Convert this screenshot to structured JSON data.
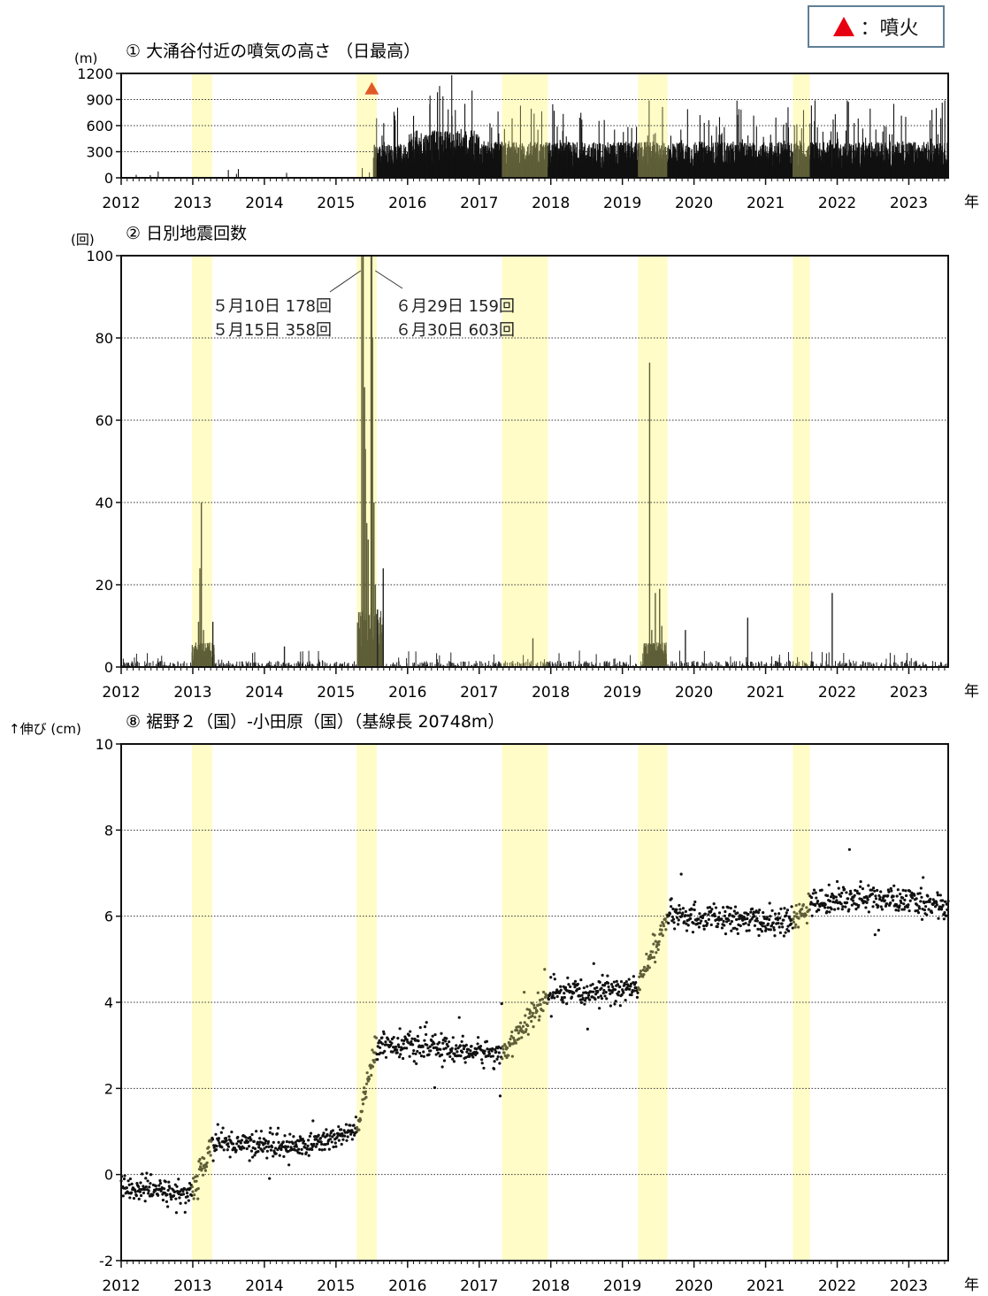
{
  "legend": {
    "marker_color": "#e60012",
    "label": "：噴火"
  },
  "year_suffix": "年",
  "highlight_color": "#fffcc8",
  "highlight_periods": [
    [
      2012.99,
      2013.27
    ],
    [
      2015.29,
      2015.57
    ],
    [
      2017.32,
      2017.96
    ],
    [
      2019.22,
      2019.63
    ],
    [
      2021.38,
      2021.62
    ]
  ],
  "chart_data": [
    {
      "type": "bar",
      "title": "① 大涌谷付近の噴気の高さ （日最高）",
      "unit": "(m)",
      "xlim": [
        2012,
        2023.55
      ],
      "ylim": [
        0,
        1200
      ],
      "x_ticks": [
        "2012",
        "2013",
        "2014",
        "2015",
        "2016",
        "2017",
        "2018",
        "2019",
        "2020",
        "2021",
        "2022",
        "2023"
      ],
      "y_ticks": [
        "0",
        "300",
        "600",
        "900",
        "1200"
      ],
      "grid": "horizontal-dotted",
      "eruption_marker": {
        "x": 2015.5,
        "y": 1020,
        "color": "#e05a28"
      },
      "series_summary": [
        {
          "period": [
            2012.0,
            2015.52
          ],
          "typical": 0,
          "max": 120
        },
        {
          "period": [
            2015.52,
            2016.0
          ],
          "typical": 300,
          "max": 850
        },
        {
          "period": [
            2016.0,
            2017.0
          ],
          "typical": 420,
          "max": 1180
        },
        {
          "period": [
            2017.0,
            2023.55
          ],
          "typical": 320,
          "max": 890
        }
      ]
    },
    {
      "type": "bar",
      "title": "② 日別地震回数",
      "unit": "(回)",
      "xlim": [
        2012,
        2023.55
      ],
      "ylim": [
        0,
        100
      ],
      "x_ticks": [
        "2012",
        "2013",
        "2014",
        "2015",
        "2016",
        "2017",
        "2018",
        "2019",
        "2020",
        "2021",
        "2022",
        "2023"
      ],
      "y_ticks": [
        "0",
        "20",
        "40",
        "60",
        "80",
        "100"
      ],
      "grid": "horizontal-dotted",
      "peaks": [
        {
          "x": 2013.12,
          "y": 40
        },
        {
          "x": 2013.1,
          "y": 24
        },
        {
          "x": 2013.08,
          "y": 11
        },
        {
          "x": 2013.15,
          "y": 9
        },
        {
          "x": 2013.28,
          "y": 11
        },
        {
          "x": 2015.36,
          "y": 100
        },
        {
          "x": 2015.38,
          "y": 100
        },
        {
          "x": 2015.4,
          "y": 68
        },
        {
          "x": 2015.41,
          "y": 53
        },
        {
          "x": 2015.43,
          "y": 35
        },
        {
          "x": 2015.45,
          "y": 31
        },
        {
          "x": 2015.49,
          "y": 100
        },
        {
          "x": 2015.5,
          "y": 100
        },
        {
          "x": 2015.51,
          "y": 80
        },
        {
          "x": 2015.53,
          "y": 40
        },
        {
          "x": 2015.55,
          "y": 20
        },
        {
          "x": 2015.58,
          "y": 14
        },
        {
          "x": 2015.66,
          "y": 24
        },
        {
          "x": 2019.38,
          "y": 74
        },
        {
          "x": 2019.41,
          "y": 9
        },
        {
          "x": 2019.46,
          "y": 18
        },
        {
          "x": 2019.52,
          "y": 19
        },
        {
          "x": 2019.55,
          "y": 10
        },
        {
          "x": 2019.88,
          "y": 9
        },
        {
          "x": 2020.75,
          "y": 12
        },
        {
          "x": 2021.93,
          "y": 18
        },
        {
          "x": 2017.75,
          "y": 7
        },
        {
          "x": 2014.28,
          "y": 5
        }
      ],
      "annotations": [
        {
          "lines": [
            "５月10日 178回",
            "５月15日 358回"
          ],
          "target_x": 2015.37
        },
        {
          "lines": [
            "６月29日 159回",
            "６月30日 603回"
          ],
          "target_x": 2015.5
        }
      ]
    },
    {
      "type": "scatter",
      "title": "⑧ 裾野２（国）-小田原（国）（基線長 20748m）",
      "unit": "↑伸び (cm)",
      "xlim": [
        2012,
        2023.55
      ],
      "ylim": [
        -2,
        10
      ],
      "x_ticks": [
        "2012",
        "2013",
        "2014",
        "2015",
        "2016",
        "2017",
        "2018",
        "2019",
        "2020",
        "2021",
        "2022",
        "2023"
      ],
      "y_ticks": [
        "-2",
        "0",
        "2",
        "4",
        "6",
        "8",
        "10"
      ],
      "grid": "horizontal-dotted",
      "trend": [
        [
          2012.0,
          -0.3
        ],
        [
          2012.99,
          -0.45
        ],
        [
          2013.27,
          0.75
        ],
        [
          2014.5,
          0.65
        ],
        [
          2015.29,
          1.0
        ],
        [
          2015.57,
          3.05
        ],
        [
          2017.32,
          2.8
        ],
        [
          2017.96,
          4.15
        ],
        [
          2019.22,
          4.35
        ],
        [
          2019.63,
          6.0
        ],
        [
          2021.38,
          5.85
        ],
        [
          2021.62,
          6.3
        ],
        [
          2022.3,
          6.45
        ],
        [
          2023.55,
          6.25
        ]
      ],
      "noise_cm": 0.15
    }
  ]
}
